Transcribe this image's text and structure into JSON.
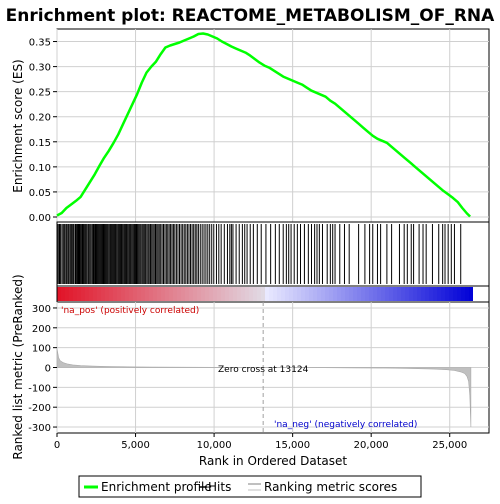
{
  "chart_data": {
    "type": "line",
    "title": "Enrichment plot: REACTOME_METABOLISM_OF_RNA",
    "xlabel": "Rank in Ordered Dataset",
    "xlim": [
      0,
      27500
    ],
    "x_ticks": [
      0,
      5000,
      10000,
      15000,
      20000,
      25000
    ],
    "x_tick_labels": [
      "0",
      "5,000",
      "10,000",
      "15,000",
      "20,000",
      "25,000"
    ],
    "es_panel": {
      "ylabel": "Enrichment score (ES)",
      "ylim": [
        -0.01,
        0.375
      ],
      "y_ticks": [
        0.0,
        0.05,
        0.1,
        0.15,
        0.2,
        0.25,
        0.3,
        0.35
      ],
      "y_tick_labels": [
        "0.00",
        "0.05",
        "0.10",
        "0.15",
        "0.20",
        "0.25",
        "0.30",
        "0.35"
      ],
      "color": "#00ff00",
      "series": [
        {
          "x": [
            0,
            300,
            600,
            900,
            1200,
            1500,
            1800,
            2100,
            2400,
            2700,
            3000,
            3300,
            3600,
            3900,
            4200,
            4500,
            4800,
            5100,
            5400,
            5700,
            6000,
            6300,
            6600,
            6900,
            7200,
            7500,
            7800,
            8100,
            8400,
            8700,
            9000,
            9300,
            9600,
            9900,
            10200,
            10500,
            10800,
            11100,
            11400,
            11700,
            12000,
            12300,
            12600,
            12900,
            13200,
            13500,
            13800,
            14100,
            14400,
            14700,
            15000,
            15300,
            15600,
            15900,
            16200,
            16500,
            16800,
            17100,
            17400,
            17700,
            18000,
            18300,
            18600,
            18900,
            19200,
            19500,
            19800,
            20100,
            20400,
            20700,
            21000,
            21300,
            21600,
            21900,
            22200,
            22500,
            22800,
            23100,
            23400,
            23700,
            24000,
            24300,
            24600,
            24900,
            25200,
            25500,
            25800,
            26100,
            26300
          ],
          "y": [
            0.003,
            0.008,
            0.018,
            0.025,
            0.032,
            0.04,
            0.055,
            0.07,
            0.085,
            0.102,
            0.118,
            0.132,
            0.148,
            0.165,
            0.185,
            0.205,
            0.225,
            0.245,
            0.268,
            0.288,
            0.3,
            0.31,
            0.325,
            0.338,
            0.342,
            0.345,
            0.348,
            0.352,
            0.356,
            0.36,
            0.365,
            0.366,
            0.364,
            0.36,
            0.356,
            0.35,
            0.345,
            0.34,
            0.336,
            0.332,
            0.328,
            0.322,
            0.315,
            0.308,
            0.302,
            0.298,
            0.292,
            0.286,
            0.28,
            0.276,
            0.272,
            0.268,
            0.264,
            0.258,
            0.252,
            0.248,
            0.244,
            0.24,
            0.232,
            0.226,
            0.218,
            0.21,
            0.202,
            0.194,
            0.186,
            0.178,
            0.17,
            0.162,
            0.156,
            0.152,
            0.148,
            0.14,
            0.132,
            0.124,
            0.116,
            0.108,
            0.1,
            0.092,
            0.084,
            0.076,
            0.068,
            0.06,
            0.052,
            0.045,
            0.038,
            0.03,
            0.018,
            0.007,
            0.001
          ]
        }
      ]
    },
    "hits": [
      20,
      80,
      160,
      230,
      320,
      400,
      470,
      560,
      620,
      700,
      770,
      850,
      930,
      1000,
      1060,
      1150,
      1210,
      1280,
      1340,
      1400,
      1460,
      1530,
      1600,
      1650,
      1710,
      1780,
      1850,
      1920,
      2000,
      2080,
      2150,
      2230,
      2300,
      2350,
      2420,
      2480,
      2540,
      2600,
      2660,
      2720,
      2780,
      2840,
      2900,
      2960,
      3020,
      3080,
      3140,
      3200,
      3260,
      3330,
      3400,
      3460,
      3520,
      3580,
      3640,
      3700,
      3760,
      3830,
      3900,
      3960,
      4020,
      4080,
      4140,
      4210,
      4280,
      4340,
      4400,
      4460,
      4530,
      4600,
      4660,
      4720,
      4790,
      4860,
      4930,
      5000,
      5060,
      5130,
      5200,
      5270,
      5340,
      5420,
      5490,
      5560,
      5640,
      5720,
      5800,
      5870,
      5950,
      6030,
      6110,
      6190,
      6270,
      6350,
      6430,
      6510,
      6600,
      6690,
      6780,
      6870,
      6960,
      7050,
      7140,
      7230,
      7320,
      7410,
      7500,
      7600,
      7700,
      7800,
      7900,
      8000,
      8100,
      8200,
      8300,
      8400,
      8500,
      8600,
      8700,
      8800,
      8900,
      9000,
      9120,
      9240,
      9360,
      9480,
      9600,
      9720,
      9850,
      9980,
      10150,
      10300,
      10450,
      10650,
      10850,
      11000,
      11100,
      11200,
      11400,
      11600,
      11800,
      11950,
      12100,
      12300,
      12500,
      12750,
      13000,
      13300,
      13600,
      13900,
      14150,
      14400,
      14600,
      14750,
      14900,
      15100,
      15300,
      15500,
      15750,
      16000,
      16200,
      16400,
      16550,
      16700,
      16900,
      17200,
      17400,
      17550,
      17700,
      18000,
      18300,
      18600,
      19200,
      19600,
      19900,
      20100,
      20400,
      20600,
      21000,
      21300,
      21800,
      22100,
      22300,
      22550,
      22700,
      23050,
      23300,
      23500,
      23900,
      24300,
      24550,
      24700,
      24900,
      25100,
      25300,
      25700
    ],
    "rank_metric": {
      "ylabel": "Ranked list metric (PreRanked)",
      "ylim": [
        -330,
        330
      ],
      "y_ticks": [
        -300,
        -200,
        -100,
        0,
        100,
        200,
        300
      ],
      "y_tick_labels": [
        "-300",
        "-200",
        "-100",
        "0",
        "100",
        "200",
        "300"
      ],
      "x": [
        0,
        100,
        200,
        400,
        700,
        1000,
        1500,
        2000,
        3000,
        4000,
        5000,
        6000,
        8000,
        10000,
        12000,
        13124,
        15000,
        17000,
        19000,
        21000,
        22000,
        23000,
        24000,
        24800,
        25300,
        25700,
        25950,
        26100,
        26200,
        26280,
        26350
      ],
      "values": [
        95,
        50,
        35,
        24,
        17,
        13,
        10,
        8,
        5.5,
        4,
        3,
        2.4,
        1.6,
        1,
        0.4,
        0,
        -0.5,
        -1.2,
        -2,
        -3,
        -4,
        -6,
        -8,
        -11,
        -15,
        -22,
        -30,
        -45,
        -70,
        -140,
        -300
      ],
      "zero_cross_label": "Zero cross at 13124",
      "zero_cross": 13124,
      "pos_label": "'na_pos' (positively correlated)",
      "neg_label": "'na_neg' (negatively correlated)",
      "pos_color": "#cc0000",
      "neg_color": "#0000cc"
    },
    "legend": {
      "placement": "bottom",
      "items": [
        {
          "label": "Enrichment profile",
          "color": "#00ff00"
        },
        {
          "label": "Hits",
          "color": "#000000"
        },
        {
          "label": "Ranking metric scores",
          "color": "#c0c0c0"
        }
      ]
    }
  }
}
